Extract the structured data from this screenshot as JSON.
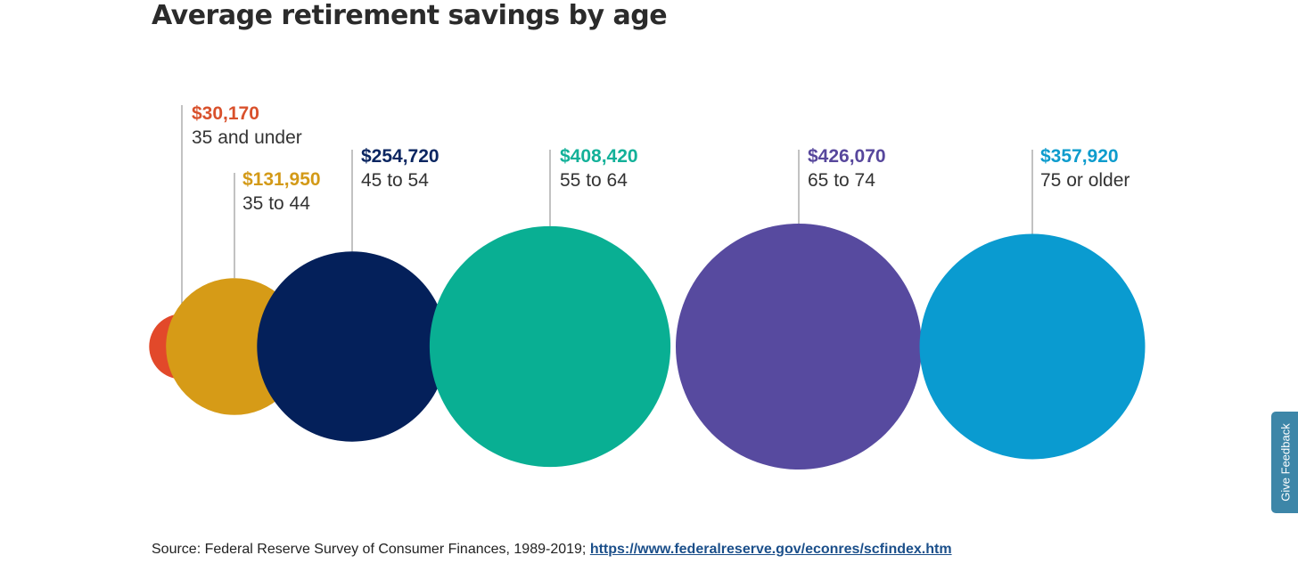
{
  "title": "Average retirement savings by age",
  "chart_data": {
    "type": "bubble",
    "title": "Average retirement savings by age",
    "categories": [
      "35 and under",
      "35 to 44",
      "45 to 54",
      "55 to 64",
      "65 to 74",
      "75 or older"
    ],
    "value_labels": [
      "$30,170",
      "$131,950",
      "$254,720",
      "$408,420",
      "$426,070",
      "$357,920"
    ],
    "values": [
      30170,
      131950,
      254720,
      408420,
      426070,
      357920
    ],
    "colors": [
      "#e2492a",
      "#d69b17",
      "#04205a",
      "#09af93",
      "#574a9f",
      "#0a9bd0"
    ],
    "label_colors": [
      "#d9512c",
      "#d39a18",
      "#0b2661",
      "#13b199",
      "#57479c",
      "#0e9ccd"
    ],
    "legend": "none",
    "grid": false
  },
  "source": {
    "text": "Source: Federal Reserve Survey of Consumer Finances, 1989-2019; ",
    "link": "https://www.federalreserve.gov/econres/scfindex.htm"
  },
  "feedback": {
    "label": "Give Feedback"
  }
}
